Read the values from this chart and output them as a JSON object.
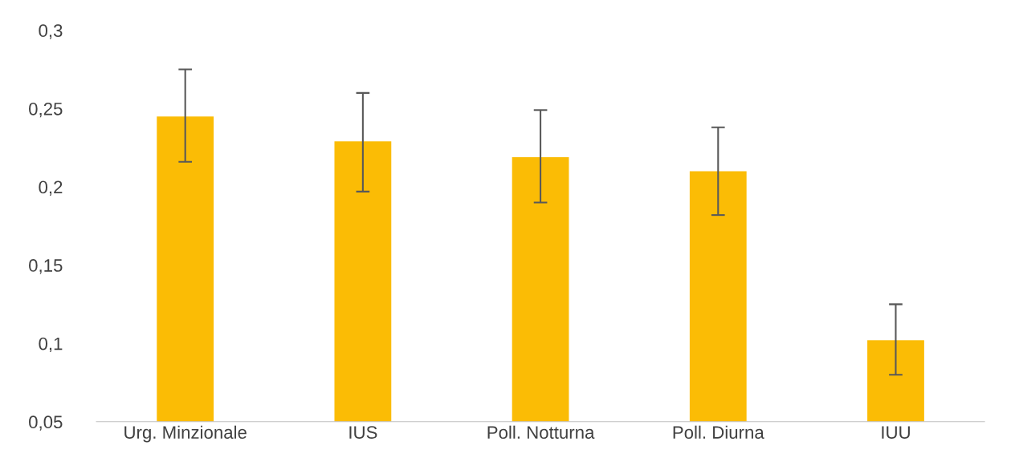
{
  "chart_data": {
    "type": "bar",
    "categories": [
      "Urg. Minzionale",
      "IUS",
      "Poll. Notturna",
      "Poll. Diurna",
      "IUU"
    ],
    "values": [
      0.245,
      0.229,
      0.219,
      0.21,
      0.102
    ],
    "errors": [
      [
        0.216,
        0.275
      ],
      [
        0.197,
        0.26
      ],
      [
        0.19,
        0.249
      ],
      [
        0.182,
        0.238
      ],
      [
        0.08,
        0.125
      ]
    ],
    "color": "#fbbc05",
    "ylim": [
      0.05,
      0.3
    ],
    "yticks": [
      {
        "value": 0.05,
        "label": "0,05"
      },
      {
        "value": 0.1,
        "label": "0,1"
      },
      {
        "value": 0.15,
        "label": "0,15"
      },
      {
        "value": 0.2,
        "label": "0,2"
      },
      {
        "value": 0.25,
        "label": "0,25"
      },
      {
        "value": 0.3,
        "label": "0,3"
      }
    ],
    "grid": false
  }
}
